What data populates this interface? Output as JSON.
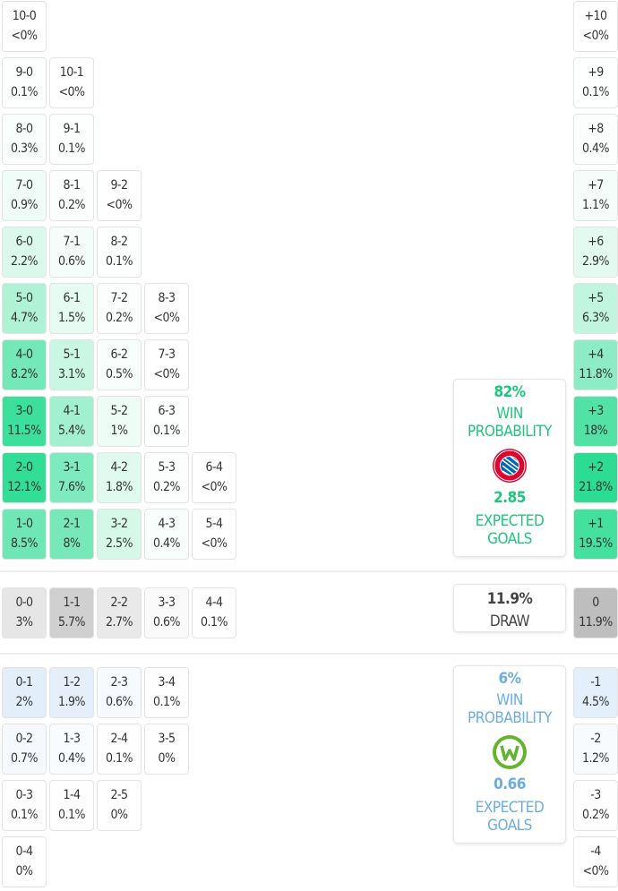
{
  "colors": {
    "home": "#2bdc92",
    "draw": "#bdbdbd",
    "away": "#a9cdf0",
    "home_text": "#1fc47d",
    "away_text": "#6aaede"
  },
  "home_rows": [
    [
      {
        "s": "10-0",
        "p": "<0%"
      }
    ],
    [
      {
        "s": "9-0",
        "p": "0.1%"
      },
      {
        "s": "10-1",
        "p": "<0%"
      }
    ],
    [
      {
        "s": "8-0",
        "p": "0.3%"
      },
      {
        "s": "9-1",
        "p": "0.1%"
      }
    ],
    [
      {
        "s": "7-0",
        "p": "0.9%"
      },
      {
        "s": "8-1",
        "p": "0.2%"
      },
      {
        "s": "9-2",
        "p": "<0%"
      }
    ],
    [
      {
        "s": "6-0",
        "p": "2.2%"
      },
      {
        "s": "7-1",
        "p": "0.6%"
      },
      {
        "s": "8-2",
        "p": "0.1%"
      }
    ],
    [
      {
        "s": "5-0",
        "p": "4.7%"
      },
      {
        "s": "6-1",
        "p": "1.5%"
      },
      {
        "s": "7-2",
        "p": "0.2%"
      },
      {
        "s": "8-3",
        "p": "<0%"
      }
    ],
    [
      {
        "s": "4-0",
        "p": "8.2%"
      },
      {
        "s": "5-1",
        "p": "3.1%"
      },
      {
        "s": "6-2",
        "p": "0.5%"
      },
      {
        "s": "7-3",
        "p": "<0%"
      }
    ],
    [
      {
        "s": "3-0",
        "p": "11.5%"
      },
      {
        "s": "4-1",
        "p": "5.4%"
      },
      {
        "s": "5-2",
        "p": "1%"
      },
      {
        "s": "6-3",
        "p": "0.1%"
      }
    ],
    [
      {
        "s": "2-0",
        "p": "12.1%"
      },
      {
        "s": "3-1",
        "p": "7.6%"
      },
      {
        "s": "4-2",
        "p": "1.8%"
      },
      {
        "s": "5-3",
        "p": "0.2%"
      },
      {
        "s": "6-4",
        "p": "<0%"
      }
    ],
    [
      {
        "s": "1-0",
        "p": "8.5%"
      },
      {
        "s": "2-1",
        "p": "8%"
      },
      {
        "s": "3-2",
        "p": "2.5%"
      },
      {
        "s": "4-3",
        "p": "0.4%"
      },
      {
        "s": "5-4",
        "p": "<0%"
      }
    ]
  ],
  "home_margins": [
    {
      "s": "+10",
      "p": "<0%"
    },
    {
      "s": "+9",
      "p": "0.1%"
    },
    {
      "s": "+8",
      "p": "0.4%"
    },
    {
      "s": "+7",
      "p": "1.1%"
    },
    {
      "s": "+6",
      "p": "2.9%"
    },
    {
      "s": "+5",
      "p": "6.3%"
    },
    {
      "s": "+4",
      "p": "11.8%"
    },
    {
      "s": "+3",
      "p": "18%"
    },
    {
      "s": "+2",
      "p": "21.8%"
    },
    {
      "s": "+1",
      "p": "19.5%"
    }
  ],
  "draw_row": [
    {
      "s": "0-0",
      "p": "3%"
    },
    {
      "s": "1-1",
      "p": "5.7%"
    },
    {
      "s": "2-2",
      "p": "2.7%"
    },
    {
      "s": "3-3",
      "p": "0.6%"
    },
    {
      "s": "4-4",
      "p": "0.1%"
    }
  ],
  "draw_margin": {
    "s": "0",
    "p": "11.9%"
  },
  "away_rows": [
    [
      {
        "s": "0-1",
        "p": "2%"
      },
      {
        "s": "1-2",
        "p": "1.9%"
      },
      {
        "s": "2-3",
        "p": "0.6%"
      },
      {
        "s": "3-4",
        "p": "0.1%"
      }
    ],
    [
      {
        "s": "0-2",
        "p": "0.7%"
      },
      {
        "s": "1-3",
        "p": "0.4%"
      },
      {
        "s": "2-4",
        "p": "0.1%"
      },
      {
        "s": "3-5",
        "p": "0%"
      }
    ],
    [
      {
        "s": "0-3",
        "p": "0.1%"
      },
      {
        "s": "1-4",
        "p": "0.1%"
      },
      {
        "s": "2-5",
        "p": "0%"
      }
    ],
    [
      {
        "s": "0-4",
        "p": "0%"
      }
    ]
  ],
  "away_margins": [
    {
      "s": "-1",
      "p": "4.5%"
    },
    {
      "s": "-2",
      "p": "1.2%"
    },
    {
      "s": "-3",
      "p": "0.2%"
    },
    {
      "s": "-4",
      "p": "<0%"
    }
  ],
  "home_card": {
    "win_pct": "82%",
    "win_label_1": "WIN",
    "win_label_2": "PROBABILITY",
    "logo": "FC BAYERN MÜNCHEN",
    "xg": "2.85",
    "xg_label_1": "EXPECTED",
    "xg_label_2": "GOALS"
  },
  "draw_card": {
    "pct": "11.9%",
    "label": "DRAW"
  },
  "away_card": {
    "win_pct": "6%",
    "win_label_1": "WIN",
    "win_label_2": "PROBABILITY",
    "logo": "VfL Wolfsburg",
    "xg": "0.66",
    "xg_label_1": "EXPECTED",
    "xg_label_2": "GOALS"
  }
}
